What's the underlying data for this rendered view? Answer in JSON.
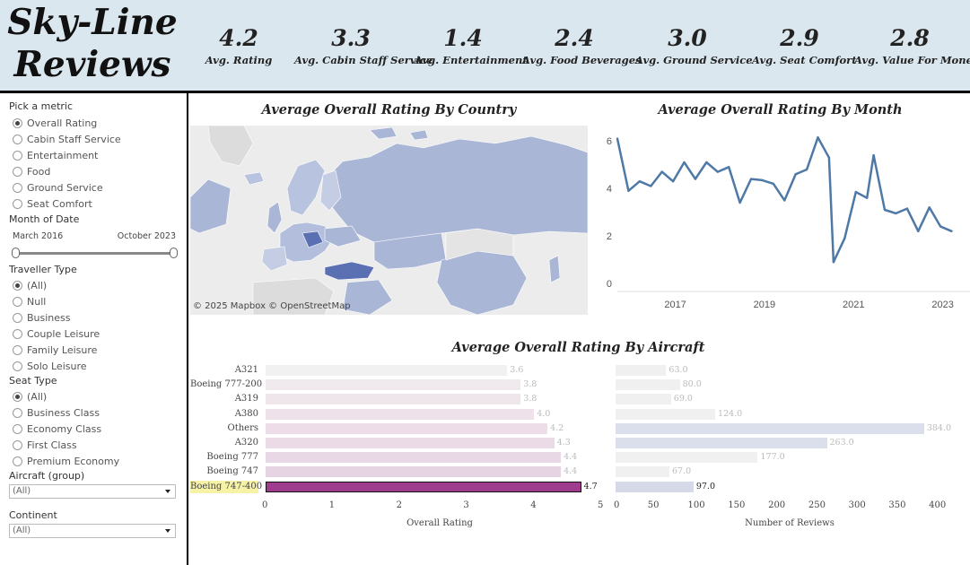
{
  "header": {
    "brand_line1": "Sky-Line",
    "brand_line2": "Reviews",
    "kpis": [
      {
        "value": "4.2",
        "label": "Avg. Rating"
      },
      {
        "value": "3.3",
        "label": "Avg. Cabin Staff Service"
      },
      {
        "value": "1.4",
        "label": "Avg. Entertainment"
      },
      {
        "value": "2.4",
        "label": "Avg. Food Beverages"
      },
      {
        "value": "3.0",
        "label": "Avg. Ground Service"
      },
      {
        "value": "2.9",
        "label": "Avg. Seat Comfort"
      },
      {
        "value": "2.8",
        "label": "Avg. Value For Money"
      }
    ]
  },
  "sidebar": {
    "metric_title": "Pick a metric",
    "metrics": [
      "Overall Rating",
      "Cabin Staff Service",
      "Entertainment",
      "Food",
      "Ground Service",
      "Seat Comfort"
    ],
    "metric_selected": "Overall Rating",
    "month_title": "Month of Date",
    "month_start": "March 2016",
    "month_end": "October 2023",
    "traveller_title": "Traveller Type",
    "travellers": [
      "(All)",
      "Null",
      "Business",
      "Couple Leisure",
      "Family Leisure",
      "Solo Leisure"
    ],
    "traveller_selected": "(All)",
    "seat_title": "Seat Type",
    "seats": [
      "(All)",
      "Business Class",
      "Economy Class",
      "First Class",
      "Premium Economy"
    ],
    "seat_selected": "(All)",
    "aircraft_title": "Aircraft (group)",
    "aircraft_value": "(All)",
    "continent_title": "Continent",
    "continent_value": "(All)"
  },
  "map": {
    "title": "Average Overall Rating By Country",
    "credit": "© 2025 Mapbox  © OpenStreetMap"
  },
  "line": {
    "title": "Average Overall Rating By Month"
  },
  "aircraft": {
    "title": "Average Overall Rating By Aircraft",
    "xlabel_rating": "Overall Rating",
    "xlabel_reviews": "Number of Reviews"
  },
  "colors": {
    "header_bg": "#dbe7ee",
    "line": "#4e79a7",
    "map_fill": "#a9b6d6",
    "bar_rating_sel": "#a03c8e",
    "bar_reviews": "#d6dae8"
  },
  "chart_data": [
    {
      "type": "line",
      "title": "Average Overall Rating By Month",
      "x_ticks": [
        "2017",
        "2019",
        "2021",
        "2023"
      ],
      "y_ticks": [
        0,
        2,
        4,
        6
      ],
      "ylim": [
        0,
        6.5
      ],
      "xlim": [
        2016.2,
        2023.85
      ],
      "points": [
        [
          2016.2,
          6.1
        ],
        [
          2016.45,
          3.9
        ],
        [
          2016.7,
          4.3
        ],
        [
          2016.95,
          4.1
        ],
        [
          2017.2,
          4.7
        ],
        [
          2017.45,
          4.3
        ],
        [
          2017.7,
          5.1
        ],
        [
          2017.95,
          4.4
        ],
        [
          2018.2,
          5.1
        ],
        [
          2018.45,
          4.7
        ],
        [
          2018.7,
          4.9
        ],
        [
          2018.95,
          3.4
        ],
        [
          2019.2,
          4.4
        ],
        [
          2019.45,
          4.35
        ],
        [
          2019.7,
          4.2
        ],
        [
          2019.95,
          3.5
        ],
        [
          2020.2,
          4.6
        ],
        [
          2020.45,
          4.8
        ],
        [
          2020.7,
          6.15
        ],
        [
          2020.95,
          5.3
        ],
        [
          2021.05,
          0.9
        ],
        [
          2021.3,
          1.9
        ],
        [
          2021.55,
          3.85
        ],
        [
          2021.8,
          3.6
        ],
        [
          2021.95,
          5.4
        ],
        [
          2022.2,
          3.1
        ],
        [
          2022.45,
          2.95
        ],
        [
          2022.7,
          3.15
        ],
        [
          2022.95,
          2.2
        ],
        [
          2023.2,
          3.2
        ],
        [
          2023.45,
          2.4
        ],
        [
          2023.7,
          2.2
        ]
      ]
    },
    {
      "type": "bar",
      "title": "Average Overall Rating By Aircraft",
      "categories": [
        "A321",
        "Boeing 777-200",
        "A319",
        "A380",
        "Others",
        "A320",
        "Boeing 777",
        "Boeing 747",
        "Boeing 747-400"
      ],
      "selected": "Boeing 747-400",
      "series": [
        {
          "name": "Overall Rating",
          "values": [
            3.6,
            3.8,
            3.8,
            4.0,
            4.2,
            4.3,
            4.4,
            4.4,
            4.7
          ],
          "labels": [
            "3.6",
            "3.8",
            "3.8",
            "4.0",
            "4.2",
            "4.3",
            "4.4",
            "4.4",
            "4.7"
          ],
          "xlim": [
            0,
            5
          ],
          "ticks": [
            0,
            1,
            2,
            3,
            4,
            5
          ]
        },
        {
          "name": "Number of Reviews",
          "values": [
            63,
            80,
            69,
            124,
            384,
            263,
            177,
            67,
            97
          ],
          "labels": [
            "63.0",
            "80.0",
            "69.0",
            "124.0",
            "384.0",
            "263.0",
            "177.0",
            "67.0",
            "97.0"
          ],
          "xlim": [
            0,
            440
          ],
          "ticks": [
            0,
            50,
            100,
            150,
            200,
            250,
            300,
            350,
            400
          ]
        }
      ]
    }
  ]
}
